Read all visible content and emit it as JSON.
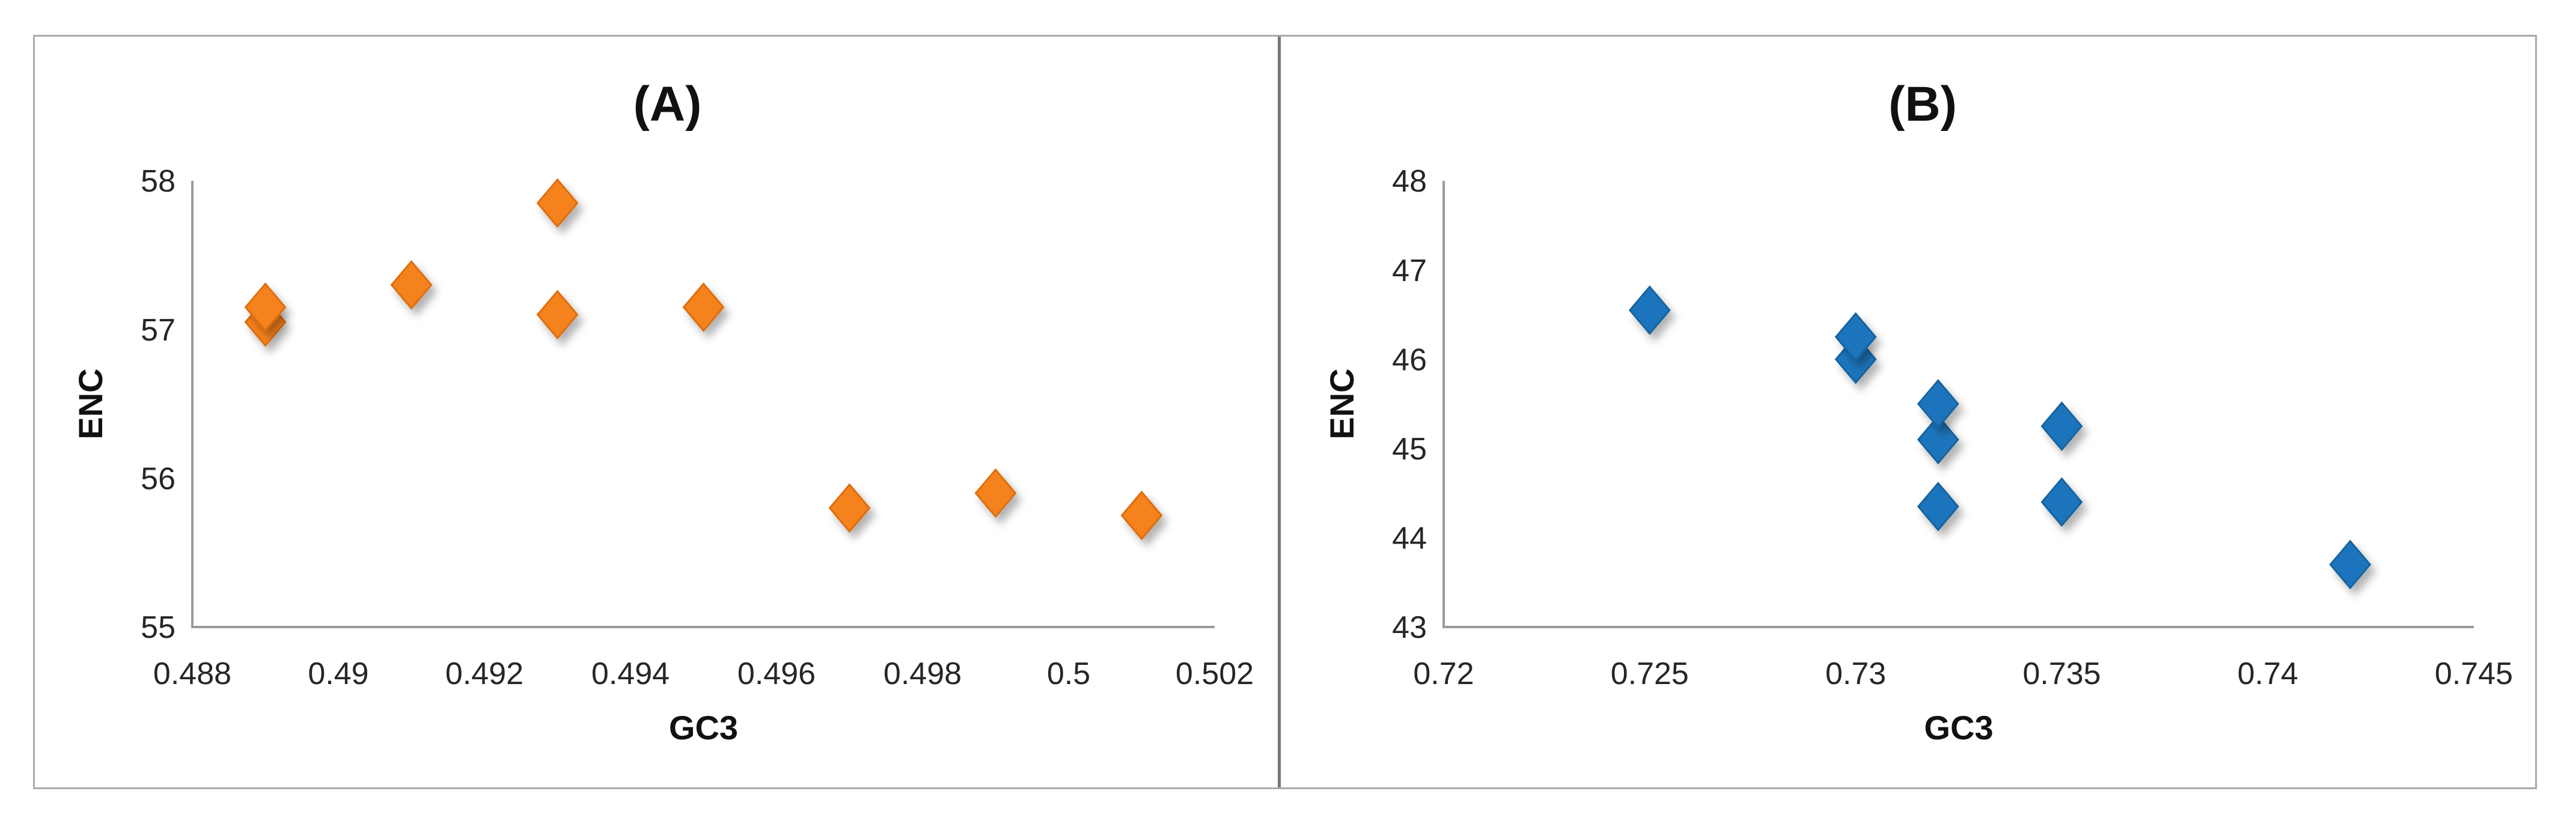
{
  "figure": {
    "background": "#ffffff",
    "border_color": "#a9a9a9",
    "divider_color": "#767676",
    "axis_color": "#9b9b9b",
    "text_color": "#262626",
    "panel_titles": [
      "(A)",
      "(B)"
    ]
  },
  "chart_data": [
    {
      "type": "scatter",
      "panel": "A",
      "title": "(A)",
      "xlabel": "GC3",
      "ylabel": "ENC",
      "xlim": [
        0.488,
        0.502
      ],
      "ylim": [
        55,
        58
      ],
      "xtick_labels": [
        "0.488",
        "0.49",
        "0.492",
        "0.494",
        "0.496",
        "0.498",
        "0.5",
        "0.502"
      ],
      "xtick_values": [
        0.488,
        0.49,
        0.492,
        0.494,
        0.496,
        0.498,
        0.5,
        0.502
      ],
      "ytick_labels": [
        "58",
        "57",
        "56",
        "55"
      ],
      "ytick_values": [
        58,
        57,
        56,
        55
      ],
      "grid": false,
      "legend": false,
      "marker": {
        "shape": "diamond",
        "color": "#F5821F",
        "edge": "#DE6E10"
      },
      "points": [
        [
          0.489,
          57.05
        ],
        [
          0.489,
          57.15
        ],
        [
          0.491,
          57.3
        ],
        [
          0.493,
          57.1
        ],
        [
          0.493,
          57.85
        ],
        [
          0.495,
          57.15
        ],
        [
          0.497,
          55.8
        ],
        [
          0.499,
          55.9
        ],
        [
          0.501,
          55.75
        ]
      ]
    },
    {
      "type": "scatter",
      "panel": "B",
      "title": "(B)",
      "xlabel": "GC3",
      "ylabel": "ENC",
      "xlim": [
        0.72,
        0.745
      ],
      "ylim": [
        43,
        48
      ],
      "xtick_labels": [
        "0.72",
        "0.725",
        "0.73",
        "0.735",
        "0.74",
        "0.745"
      ],
      "xtick_values": [
        0.72,
        0.725,
        0.73,
        0.735,
        0.74,
        0.745
      ],
      "ytick_labels": [
        "48",
        "47",
        "46",
        "45",
        "44",
        "43"
      ],
      "ytick_values": [
        48,
        47,
        46,
        45,
        44,
        43
      ],
      "grid": false,
      "legend": false,
      "marker": {
        "shape": "diamond",
        "color": "#1B75BC",
        "edge": "#14639F"
      },
      "points": [
        [
          0.725,
          46.55
        ],
        [
          0.73,
          46.0
        ],
        [
          0.73,
          46.25
        ],
        [
          0.732,
          45.1
        ],
        [
          0.732,
          45.5
        ],
        [
          0.732,
          44.35
        ],
        [
          0.735,
          44.4
        ],
        [
          0.735,
          45.25
        ],
        [
          0.742,
          43.7
        ]
      ]
    }
  ]
}
